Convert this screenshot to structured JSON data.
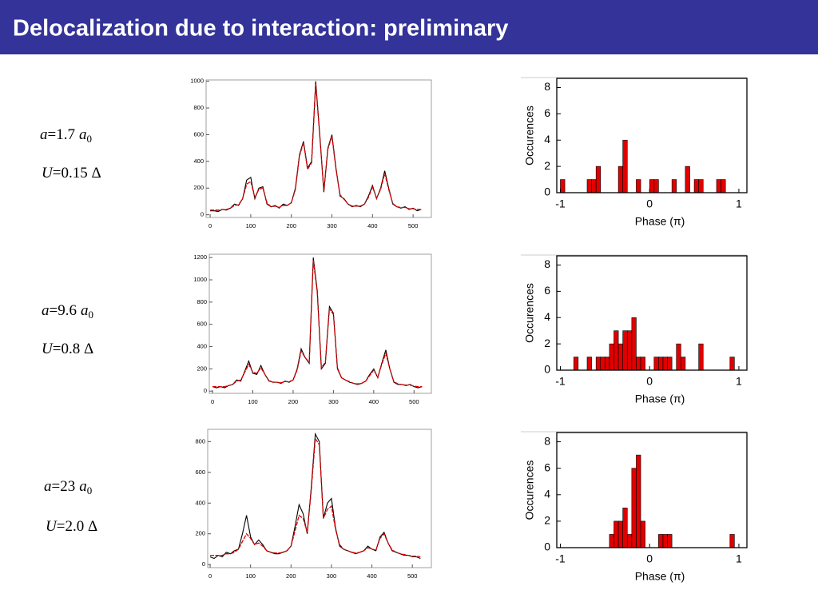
{
  "header": {
    "title": "Delocalization due to interaction: preliminary"
  },
  "symbols": {
    "a": "a",
    "U": "U",
    "unit": "a",
    "unit_sub": "0"
  },
  "params": [
    {
      "a": "=1.7",
      "U": "=0.15 Δ"
    },
    {
      "a": "=9.6",
      "U": "=0.8 Δ"
    },
    {
      "a": "=23",
      "U": "=2.0 Δ"
    }
  ],
  "chart_data": [
    {
      "type": "line",
      "x": [
        0,
        10,
        20,
        30,
        40,
        50,
        60,
        70,
        80,
        90,
        100,
        110,
        120,
        130,
        140,
        150,
        160,
        170,
        180,
        190,
        200,
        210,
        220,
        230,
        240,
        250,
        260,
        270,
        280,
        290,
        300,
        310,
        320,
        330,
        340,
        350,
        360,
        370,
        380,
        390,
        400,
        410,
        420,
        430,
        440,
        450,
        460,
        470,
        480,
        490,
        500,
        510,
        520
      ],
      "series": [
        {
          "color": "#000000",
          "values": [
            30,
            30,
            25,
            40,
            35,
            50,
            80,
            70,
            120,
            260,
            280,
            120,
            200,
            210,
            80,
            60,
            70,
            50,
            80,
            70,
            90,
            200,
            450,
            550,
            350,
            400,
            1000,
            600,
            170,
            500,
            600,
            350,
            140,
            120,
            80,
            60,
            70,
            60,
            80,
            140,
            220,
            120,
            200,
            330,
            200,
            80,
            60,
            50,
            60,
            40,
            50,
            30,
            40
          ]
        },
        {
          "color": "#dd0000",
          "values": [
            35,
            35,
            35,
            40,
            40,
            50,
            70,
            75,
            120,
            230,
            250,
            130,
            190,
            200,
            90,
            60,
            65,
            55,
            70,
            70,
            90,
            190,
            440,
            540,
            340,
            390,
            980,
            590,
            180,
            490,
            590,
            340,
            150,
            115,
            80,
            65,
            65,
            65,
            80,
            130,
            210,
            125,
            190,
            310,
            190,
            85,
            60,
            55,
            55,
            45,
            45,
            40,
            40
          ]
        }
      ],
      "xlim": [
        -10,
        545
      ],
      "ylim": [
        -20,
        1010
      ],
      "xticks": [
        0,
        100,
        200,
        300,
        400,
        500
      ],
      "yticks": [
        0,
        200,
        400,
        600,
        800,
        1000
      ]
    },
    {
      "type": "line",
      "x": [
        0,
        10,
        20,
        30,
        40,
        50,
        60,
        70,
        80,
        90,
        100,
        110,
        120,
        130,
        140,
        150,
        160,
        170,
        180,
        190,
        200,
        210,
        220,
        230,
        240,
        250,
        260,
        270,
        280,
        290,
        300,
        310,
        320,
        330,
        340,
        350,
        360,
        370,
        380,
        390,
        400,
        410,
        420,
        430,
        440,
        450,
        460,
        470,
        480,
        490,
        500,
        510,
        520
      ],
      "series": [
        {
          "color": "#000000",
          "values": [
            40,
            30,
            40,
            30,
            50,
            60,
            100,
            90,
            180,
            270,
            160,
            150,
            230,
            150,
            90,
            80,
            80,
            70,
            90,
            80,
            100,
            200,
            380,
            300,
            250,
            1200,
            900,
            200,
            250,
            760,
            700,
            200,
            120,
            100,
            80,
            70,
            60,
            70,
            90,
            150,
            200,
            120,
            250,
            370,
            200,
            80,
            60,
            60,
            50,
            60,
            40,
            30,
            40
          ]
        },
        {
          "color": "#dd0000",
          "values": [
            40,
            40,
            40,
            40,
            50,
            60,
            90,
            100,
            170,
            240,
            170,
            160,
            210,
            150,
            95,
            80,
            80,
            75,
            85,
            85,
            100,
            190,
            360,
            300,
            260,
            1180,
            880,
            210,
            260,
            740,
            690,
            210,
            120,
            100,
            85,
            70,
            65,
            70,
            90,
            140,
            190,
            125,
            240,
            340,
            200,
            85,
            65,
            60,
            55,
            55,
            45,
            40,
            40
          ]
        }
      ],
      "xlim": [
        -8,
        543
      ],
      "ylim": [
        -20,
        1230
      ],
      "xticks": [
        0,
        100,
        200,
        300,
        400,
        500
      ],
      "yticks": [
        0,
        200,
        400,
        600,
        800,
        1000,
        1200
      ]
    },
    {
      "type": "line",
      "x": [
        0,
        10,
        20,
        30,
        40,
        50,
        60,
        70,
        80,
        90,
        100,
        110,
        120,
        130,
        140,
        150,
        160,
        170,
        180,
        190,
        200,
        210,
        220,
        230,
        240,
        250,
        260,
        270,
        280,
        290,
        300,
        310,
        320,
        330,
        340,
        350,
        360,
        370,
        380,
        390,
        400,
        410,
        420,
        430,
        440,
        450,
        460,
        470,
        480,
        490,
        500,
        510,
        520
      ],
      "series": [
        {
          "color": "#000000",
          "values": [
            50,
            40,
            60,
            50,
            80,
            70,
            90,
            100,
            200,
            320,
            180,
            130,
            160,
            130,
            90,
            80,
            70,
            70,
            80,
            90,
            120,
            250,
            390,
            330,
            200,
            500,
            850,
            800,
            300,
            400,
            430,
            240,
            120,
            100,
            90,
            80,
            70,
            80,
            90,
            120,
            100,
            90,
            180,
            210,
            140,
            90,
            80,
            70,
            60,
            60,
            50,
            50,
            40
          ]
        },
        {
          "color": "#dd0000",
          "values": [
            60,
            60,
            60,
            60,
            70,
            70,
            80,
            100,
            150,
            200,
            170,
            130,
            140,
            120,
            90,
            80,
            75,
            75,
            80,
            90,
            120,
            220,
            320,
            300,
            210,
            480,
            820,
            780,
            300,
            360,
            380,
            230,
            130,
            100,
            90,
            80,
            75,
            80,
            90,
            110,
            100,
            95,
            170,
            200,
            140,
            95,
            80,
            70,
            65,
            60,
            55,
            55,
            50
          ]
        }
      ],
      "xlim": [
        -6,
        547
      ],
      "ylim": [
        -20,
        880
      ],
      "xticks": [
        0,
        100,
        200,
        300,
        400,
        500
      ],
      "yticks": [
        0,
        200,
        400,
        600,
        800
      ]
    },
    {
      "type": "histogram",
      "xlabel": "Phase (π)",
      "ylabel": "Occurences",
      "color": "#e00000",
      "bins": [
        -1,
        -0.95,
        -0.9,
        -0.85,
        -0.8,
        -0.75,
        -0.7,
        -0.65,
        -0.6,
        -0.55,
        -0.5,
        -0.45,
        -0.4,
        -0.35,
        -0.3,
        -0.25,
        -0.2,
        -0.15,
        -0.1,
        -0.05,
        0,
        0.05,
        0.1,
        0.15,
        0.2,
        0.25,
        0.3,
        0.35,
        0.4,
        0.45,
        0.5,
        0.55,
        0.6,
        0.65,
        0.7,
        0.75,
        0.8,
        0.85,
        0.9,
        0.95,
        1
      ],
      "values": [
        1,
        0,
        0,
        0,
        0,
        0,
        1,
        1,
        2,
        0,
        0,
        0,
        0,
        2,
        4,
        0,
        0,
        1,
        0,
        0,
        1,
        1,
        0,
        0,
        0,
        1,
        0,
        0,
        2,
        0,
        1,
        1,
        0,
        0,
        0,
        1,
        1,
        0,
        0,
        0
      ],
      "xlim": [
        -1.04,
        1.09
      ],
      "ylim": [
        0,
        8.7
      ],
      "xticks": [
        -1,
        0,
        1
      ],
      "yticks": [
        0,
        2,
        4,
        6,
        8
      ]
    },
    {
      "type": "histogram",
      "xlabel": "Phase (π)",
      "ylabel": "Occurences",
      "color": "#e00000",
      "bins": [
        -1,
        -0.95,
        -0.9,
        -0.85,
        -0.8,
        -0.75,
        -0.7,
        -0.65,
        -0.6,
        -0.55,
        -0.5,
        -0.45,
        -0.4,
        -0.35,
        -0.3,
        -0.25,
        -0.2,
        -0.15,
        -0.1,
        -0.05,
        0,
        0.05,
        0.1,
        0.15,
        0.2,
        0.25,
        0.3,
        0.35,
        0.4,
        0.45,
        0.5,
        0.55,
        0.6,
        0.65,
        0.7,
        0.75,
        0.8,
        0.85,
        0.9,
        0.95,
        1
      ],
      "values": [
        0,
        0,
        0,
        1,
        0,
        0,
        1,
        0,
        1,
        1,
        1,
        2,
        3,
        2,
        3,
        3,
        4,
        1,
        1,
        0,
        0,
        1,
        1,
        1,
        1,
        0,
        2,
        1,
        0,
        0,
        0,
        2,
        0,
        0,
        0,
        0,
        0,
        0,
        1,
        0
      ],
      "xlim": [
        -1.04,
        1.09
      ],
      "ylim": [
        0,
        8.7
      ],
      "xticks": [
        -1,
        0,
        1
      ],
      "yticks": [
        0,
        2,
        4,
        6,
        8
      ]
    },
    {
      "type": "histogram",
      "xlabel": "Phase (π)",
      "ylabel": "Occurences",
      "color": "#e00000",
      "bins": [
        -1,
        -0.95,
        -0.9,
        -0.85,
        -0.8,
        -0.75,
        -0.7,
        -0.65,
        -0.6,
        -0.55,
        -0.5,
        -0.45,
        -0.4,
        -0.35,
        -0.3,
        -0.25,
        -0.2,
        -0.15,
        -0.1,
        -0.05,
        0,
        0.05,
        0.1,
        0.15,
        0.2,
        0.25,
        0.3,
        0.35,
        0.4,
        0.45,
        0.5,
        0.55,
        0.6,
        0.65,
        0.7,
        0.75,
        0.8,
        0.85,
        0.9,
        0.95,
        1
      ],
      "values": [
        0,
        0,
        0,
        0,
        0,
        0,
        0,
        0,
        0,
        0,
        0,
        1,
        2,
        2,
        3,
        1,
        6,
        7,
        2,
        0,
        0,
        0,
        1,
        1,
        1,
        0,
        0,
        0,
        0,
        0,
        0,
        0,
        0,
        0,
        0,
        0,
        0,
        0,
        1,
        0
      ],
      "xlim": [
        -1.04,
        1.09
      ],
      "ylim": [
        0,
        8.7
      ],
      "xticks": [
        -1,
        0,
        1
      ],
      "yticks": [
        0,
        2,
        4,
        6,
        8
      ]
    }
  ]
}
